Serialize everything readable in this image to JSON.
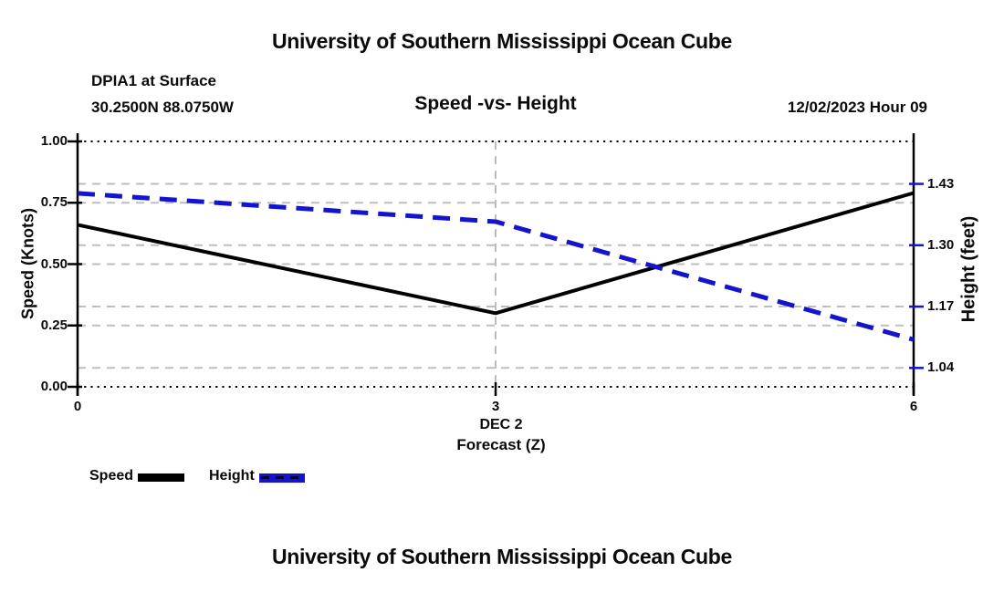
{
  "header": {
    "main_title": "University of Southern Mississippi Ocean Cube",
    "station": "DPIA1 at Surface",
    "coordinates": "30.2500N  88.0750W",
    "chart_title": "Speed -vs- Height",
    "run_datetime": "12/02/2023 Hour 09"
  },
  "chart_data": {
    "type": "line",
    "x_min": 0,
    "x_max": 6,
    "x_ticks": [
      0,
      3,
      6
    ],
    "x_tick_labels": [
      "0",
      "3",
      "6"
    ],
    "x_date_label": "DEC 2",
    "xlabel": "Forecast (Z)",
    "left_axis": {
      "label": "Speed (Knots)",
      "min": 0.0,
      "max": 1.0,
      "ticks": [
        0.0,
        0.25,
        0.5,
        0.75,
        1.0
      ],
      "tick_labels": [
        "0.00",
        "0.25",
        "0.50",
        "0.75",
        "1.00"
      ],
      "tick_color": "#000000"
    },
    "right_axis": {
      "label": "Height (feet)",
      "min": 1.0,
      "max": 1.52,
      "ticks": [
        1.04,
        1.17,
        1.3,
        1.43
      ],
      "tick_labels": [
        "1.04",
        "1.17",
        "1.30",
        "1.43"
      ],
      "tick_color": "#1414cc"
    },
    "series": [
      {
        "name": "Speed",
        "axis": "left",
        "color": "#000000",
        "line_style": "solid",
        "x": [
          0,
          3,
          6
        ],
        "values": [
          0.66,
          0.3,
          0.79
        ]
      },
      {
        "name": "Height",
        "axis": "right",
        "color": "#1414cc",
        "line_style": "dashed",
        "x": [
          0,
          3,
          6
        ],
        "values": [
          1.41,
          1.35,
          1.1
        ]
      }
    ],
    "gridlines": {
      "color": "#bdbdbd",
      "style": "dashed"
    },
    "frame": {
      "border_style": "dotted",
      "border_color": "#000000"
    }
  },
  "legend": {
    "items": [
      {
        "label": "Speed",
        "color": "#000000",
        "style": "solid"
      },
      {
        "label": "Height",
        "color": "#1414cc",
        "style": "dashed"
      }
    ]
  },
  "footer": {
    "title": "University of Southern Mississippi Ocean Cube"
  }
}
